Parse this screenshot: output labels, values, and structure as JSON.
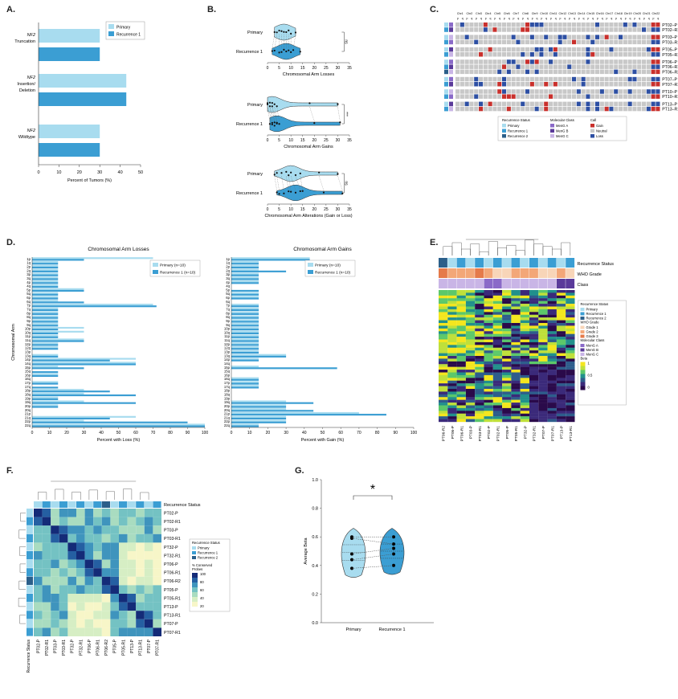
{
  "panel_labels": {
    "a": "A.",
    "b": "B.",
    "c": "C.",
    "d": "D.",
    "e": "E.",
    "f": "F.",
    "g": "G."
  },
  "colors": {
    "primary": "#a8dcef",
    "recurrence1": "#3b9ed3",
    "recurrence2": "#2b5f8a",
    "gain": "#c9302c",
    "loss": "#2d4fa3",
    "neutral": "#c8c8c8",
    "mena": "#8a6ac8",
    "menb": "#5a3a9a",
    "menc": "#c9b5e6"
  },
  "panel_a": {
    "chart_data": {
      "type": "bar",
      "orientation": "horizontal",
      "categories": [
        "NF2\nTruncation",
        "NF2\nInsertion/\nDeletion",
        "NF2\nWildtype"
      ],
      "series": [
        {
          "name": "Primary",
          "values": [
            30,
            43,
            30
          ]
        },
        {
          "name": "Recurrence 1",
          "values": [
            30,
            43,
            30
          ]
        }
      ],
      "xlabel": "Percent of Tumors (%)",
      "xlim": [
        0,
        50
      ],
      "xticks": [
        "0",
        "10",
        "20",
        "30",
        "40",
        "50"
      ]
    }
  },
  "panel_b": {
    "charts": [
      {
        "xlabel": "Chromosomal Arm Losses",
        "sig": "ns",
        "ticks": [
          "0",
          "5",
          "10",
          "15",
          "20",
          "25",
          "30",
          "35"
        ],
        "primary": [
          3,
          4,
          5,
          6,
          7,
          8,
          9,
          10,
          12
        ],
        "recurrence": [
          2,
          3,
          5,
          6,
          7,
          8,
          9,
          10,
          11,
          14
        ]
      },
      {
        "xlabel": "Chromosomal Arm Gains",
        "sig": "***",
        "ticks": [
          "0",
          "5",
          "10",
          "15",
          "20",
          "25",
          "30",
          "35"
        ],
        "primary": [
          0,
          0,
          1,
          1,
          2,
          2,
          3,
          4,
          18,
          30
        ],
        "recurrence": [
          1,
          2,
          2,
          3,
          3,
          4,
          4,
          5,
          20,
          31
        ]
      },
      {
        "xlabel": "Chromosomal Arm Alterations (Gain or Loss)",
        "sig": "ns",
        "ticks": [
          "0",
          "5",
          "10",
          "15",
          "20",
          "25",
          "30",
          "35"
        ],
        "primary": [
          3,
          4,
          6,
          8,
          9,
          10,
          12,
          14,
          22,
          30
        ],
        "recurrence": [
          4,
          5,
          7,
          9,
          10,
          12,
          14,
          15,
          24,
          32
        ]
      }
    ],
    "row_primary": "Primary",
    "row_recurrence": "Recurrence 1"
  },
  "panel_c": {
    "chrom_headers": [
      "Chr1",
      "Chr2",
      "Chr3",
      "Chr4",
      "Chr5",
      "Chr6",
      "Chr7",
      "Chr8",
      "Chr9",
      "Chr10",
      "Chr11",
      "Chr12",
      "Chr13",
      "Chr14",
      "Chr15",
      "Chr16",
      "Chr17",
      "Chr18",
      "Chr19",
      "Chr20",
      "Chr21",
      "Chr22"
    ],
    "rows": [
      "PT02–P",
      "PT02–R1",
      "PT03–P",
      "PT03–R1",
      "PT05–P",
      "PT05–R1",
      "PT06–P",
      "PT06–R1",
      "PT06–R2",
      "PT07–P",
      "PT07–R1",
      "PT10–P",
      "PT10–R1",
      "PT13–P",
      "PT13–R1"
    ],
    "legend": {
      "rec_title": "Recurrence Status",
      "rec": [
        "Primary",
        "Recurrence 1",
        "Recurrence 2"
      ],
      "mol_title": "Molecular Class",
      "mol": [
        "MenG A",
        "MenG B",
        "MenG C"
      ],
      "call_title": "Call",
      "call": [
        "Gain",
        "Neutral",
        "Loss"
      ]
    }
  },
  "panel_d": {
    "arms": [
      "1p",
      "1q",
      "2p",
      "2q",
      "3p",
      "3q",
      "4p",
      "4q",
      "5p",
      "5q",
      "6p",
      "6q",
      "7p",
      "7q",
      "8p",
      "8q",
      "9p",
      "9q",
      "10p",
      "10q",
      "11p",
      "11q",
      "12p",
      "12q",
      "13p",
      "13q",
      "14p",
      "14q",
      "15p",
      "15q",
      "16p",
      "16q",
      "17p",
      "17q",
      "18p",
      "18q",
      "19p",
      "19q",
      "20p",
      "20q",
      "21p",
      "21q",
      "22p",
      "22q"
    ],
    "losses": {
      "title": "Chromosomal Arm Losses",
      "xlabel": "Percent with Loss (%)",
      "ylabel": "Chromosomal Arm",
      "legend": [
        "Primary (n=10)",
        "Recurrence 1 (n=10)"
      ],
      "xticks": [
        "0",
        "10",
        "20",
        "30",
        "40",
        "50",
        "60",
        "70",
        "80",
        "90",
        "100"
      ],
      "primary": [
        70,
        15,
        15,
        15,
        15,
        15,
        15,
        15,
        30,
        15,
        15,
        15,
        70,
        15,
        15,
        15,
        15,
        15,
        30,
        30,
        15,
        30,
        15,
        15,
        0,
        15,
        60,
        60,
        15,
        0,
        15,
        0,
        15,
        0,
        30,
        30,
        15,
        30,
        15,
        0,
        0,
        60,
        30,
        100
      ],
      "recurrence": [
        30,
        15,
        15,
        15,
        15,
        15,
        15,
        15,
        30,
        15,
        15,
        30,
        72,
        15,
        15,
        15,
        15,
        15,
        15,
        15,
        15,
        30,
        15,
        15,
        0,
        15,
        45,
        60,
        30,
        15,
        15,
        0,
        15,
        15,
        45,
        60,
        15,
        60,
        15,
        0,
        0,
        45,
        90,
        100
      ]
    },
    "gains": {
      "title": "Chromosomal Arm Gains",
      "xlabel": "Percent with Gain (%)",
      "legend": [
        "Primary (n=10)",
        "Recurrence 1 (n=10)"
      ],
      "xticks": [
        "0",
        "10",
        "20",
        "30",
        "40",
        "50",
        "60",
        "70",
        "80",
        "90",
        "100"
      ],
      "primary": [
        43,
        15,
        15,
        15,
        15,
        15,
        15,
        0,
        0,
        15,
        15,
        0,
        15,
        15,
        15,
        15,
        15,
        15,
        15,
        15,
        15,
        15,
        15,
        15,
        15,
        30,
        15,
        0,
        15,
        0,
        0,
        15,
        15,
        15,
        0,
        0,
        0,
        30,
        30,
        30,
        70,
        30,
        30,
        15
      ],
      "recurrence": [
        43,
        15,
        15,
        30,
        15,
        15,
        15,
        0,
        15,
        15,
        15,
        0,
        15,
        15,
        15,
        15,
        15,
        15,
        15,
        15,
        15,
        15,
        15,
        15,
        15,
        30,
        15,
        0,
        58,
        0,
        0,
        15,
        15,
        15,
        0,
        0,
        0,
        45,
        30,
        45,
        85,
        30,
        30,
        15
      ]
    }
  },
  "panel_e": {
    "track_labels": [
      "Recurrence Status",
      "WHO Grade",
      "Class"
    ],
    "columns": [
      "PT06-R2",
      "PT06-P",
      "PT06-R1",
      "PT03-P",
      "PT03-R1",
      "PT02-P",
      "PT02-R1",
      "PT05-P",
      "PT05-R1",
      "PT32-P",
      "PT32-R1",
      "PT07-P",
      "PT07-R1",
      "PT13-P",
      "PT13-R1"
    ],
    "legend": {
      "rec_title": "Recurrence Status",
      "rec": [
        "Primary",
        "Recurrence 1",
        "Recurrence 2"
      ],
      "who_title": "WHO Grade",
      "who": [
        "Grade 1",
        "Grade 2",
        "Grade 3"
      ],
      "mol_title": "Molecular Class",
      "mol": [
        "MenG A",
        "MenG B",
        "MenG C"
      ],
      "beta_title": "Beta",
      "beta_ticks": [
        "1",
        "0.5",
        "0"
      ]
    }
  },
  "panel_f": {
    "track_label": "Recurrence Status",
    "axis_label": "Recurrence Status",
    "samples": [
      "PT02-P",
      "PT02-R1",
      "PT03-P",
      "PT03-R1",
      "PT32-P",
      "PT32-R1",
      "PT06-P",
      "PT06-R1",
      "PT06-R2",
      "PT05-P",
      "PT05-R1",
      "PT13-P",
      "PT13-R1",
      "PT07-P",
      "PT07-R1"
    ],
    "legend": {
      "rec_title": "Recurrence Status",
      "rec": [
        "Primary",
        "Recurrence 1",
        "Recurrence 2"
      ],
      "scale_title": "% Conserved Probes",
      "scale_ticks": [
        "100",
        "80",
        "60",
        "40",
        "20"
      ]
    }
  },
  "panel_g": {
    "chart_data": {
      "type": "violin",
      "categories": [
        "Primary",
        "Recurrence 1"
      ],
      "primary": [
        0.38,
        0.44,
        0.48,
        0.59,
        0.6
      ],
      "recurrence": [
        0.4,
        0.48,
        0.52,
        0.55,
        0.6
      ],
      "ylabel": "Average Beta",
      "ylim": [
        0,
        1.0
      ],
      "yticks": [
        "0.0",
        "0.2",
        "0.4",
        "0.6",
        "0.8",
        "1.0"
      ],
      "significance": "*"
    }
  }
}
